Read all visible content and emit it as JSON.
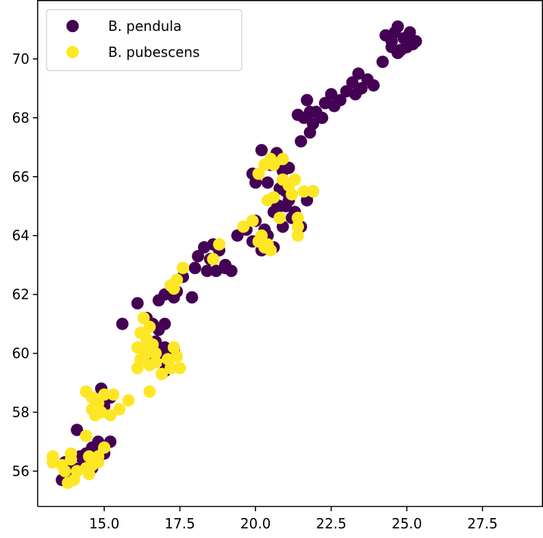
{
  "colors": {
    "pendula": "#440154",
    "pubescens": "#fde725",
    "axis": "#000000"
  },
  "chart_data": {
    "type": "scatter",
    "title": "",
    "xlabel": "",
    "ylabel": "",
    "xlim": [
      12.8,
      29.5
    ],
    "ylim": [
      54.8,
      72.0
    ],
    "xticks": [
      15.0,
      17.5,
      20.0,
      22.5,
      25.0,
      27.5
    ],
    "xtick_labels": [
      "15.0",
      "17.5",
      "20.0",
      "22.5",
      "25.0",
      "27.5"
    ],
    "yticks": [
      56,
      58,
      60,
      62,
      64,
      66,
      68,
      70
    ],
    "ytick_labels": [
      "56",
      "58",
      "60",
      "62",
      "64",
      "66",
      "68",
      "70"
    ],
    "grid": false,
    "legend_position": "top-left",
    "series": [
      {
        "name": "B. pendula",
        "color": "#440154",
        "points": [
          [
            13.6,
            55.7
          ],
          [
            13.8,
            55.9
          ],
          [
            14.0,
            56.1
          ],
          [
            13.7,
            56.3
          ],
          [
            14.2,
            56.5
          ],
          [
            14.3,
            56.2
          ],
          [
            14.1,
            57.4
          ],
          [
            14.4,
            56.6
          ],
          [
            14.6,
            56.8
          ],
          [
            14.8,
            57.0
          ],
          [
            15.2,
            57.0
          ],
          [
            15.0,
            56.6
          ],
          [
            14.6,
            56.1
          ],
          [
            14.9,
            58.8
          ],
          [
            15.2,
            58.5
          ],
          [
            15.0,
            58.2
          ],
          [
            15.6,
            61.0
          ],
          [
            16.1,
            61.7
          ],
          [
            16.4,
            61.2
          ],
          [
            16.6,
            61.0
          ],
          [
            16.8,
            60.8
          ],
          [
            17.0,
            61.0
          ],
          [
            16.7,
            60.4
          ],
          [
            17.0,
            60.2
          ],
          [
            16.8,
            60.0
          ],
          [
            16.6,
            59.8
          ],
          [
            17.1,
            59.6
          ],
          [
            17.3,
            60.1
          ],
          [
            17.0,
            59.4
          ],
          [
            16.8,
            61.8
          ],
          [
            17.0,
            62.0
          ],
          [
            17.2,
            62.3
          ],
          [
            17.4,
            62.1
          ],
          [
            17.6,
            62.6
          ],
          [
            17.9,
            61.9
          ],
          [
            17.3,
            61.9
          ],
          [
            18.1,
            63.3
          ],
          [
            18.3,
            63.6
          ],
          [
            18.5,
            63.2
          ],
          [
            18.0,
            62.9
          ],
          [
            18.4,
            62.8
          ],
          [
            18.8,
            63.5
          ],
          [
            19.0,
            62.9
          ],
          [
            18.7,
            62.8
          ],
          [
            19.2,
            62.8
          ],
          [
            18.6,
            63.7
          ],
          [
            19.0,
            63.0
          ],
          [
            19.4,
            64.0
          ],
          [
            19.7,
            64.2
          ],
          [
            20.0,
            64.5
          ],
          [
            20.2,
            63.7
          ],
          [
            20.4,
            64.0
          ],
          [
            20.2,
            63.5
          ],
          [
            20.6,
            63.6
          ],
          [
            19.9,
            63.8
          ],
          [
            20.3,
            64.2
          ],
          [
            20.6,
            64.8
          ],
          [
            20.9,
            64.3
          ],
          [
            21.1,
            65.2
          ],
          [
            21.3,
            64.8
          ],
          [
            21.5,
            64.3
          ],
          [
            21.0,
            65.5
          ],
          [
            21.7,
            65.2
          ],
          [
            21.9,
            65.5
          ],
          [
            20.8,
            65.0
          ],
          [
            21.2,
            64.6
          ],
          [
            19.9,
            66.1
          ],
          [
            20.2,
            66.9
          ],
          [
            20.5,
            66.4
          ],
          [
            20.7,
            66.8
          ],
          [
            20.9,
            66.2
          ],
          [
            20.4,
            65.8
          ],
          [
            20.8,
            65.6
          ],
          [
            21.1,
            66.3
          ],
          [
            20.6,
            65.2
          ],
          [
            21.0,
            65.0
          ],
          [
            20.0,
            65.8
          ],
          [
            21.5,
            67.2
          ],
          [
            21.6,
            68.0
          ],
          [
            21.8,
            68.2
          ],
          [
            21.9,
            67.8
          ],
          [
            21.7,
            68.6
          ],
          [
            22.0,
            68.2
          ],
          [
            22.2,
            68.0
          ],
          [
            21.4,
            68.1
          ],
          [
            21.8,
            67.5
          ],
          [
            22.3,
            68.5
          ],
          [
            22.5,
            68.8
          ],
          [
            22.8,
            68.6
          ],
          [
            23.0,
            68.9
          ],
          [
            23.2,
            69.2
          ],
          [
            23.4,
            69.5
          ],
          [
            23.5,
            69.0
          ],
          [
            23.7,
            69.3
          ],
          [
            23.9,
            69.1
          ],
          [
            22.6,
            68.4
          ],
          [
            23.3,
            68.8
          ],
          [
            24.2,
            69.9
          ],
          [
            24.3,
            70.8
          ],
          [
            24.5,
            70.6
          ],
          [
            24.6,
            70.9
          ],
          [
            24.7,
            71.1
          ],
          [
            24.8,
            70.3
          ],
          [
            24.9,
            70.7
          ],
          [
            25.0,
            70.4
          ],
          [
            25.1,
            70.9
          ],
          [
            25.2,
            70.5
          ],
          [
            25.3,
            70.6
          ],
          [
            24.7,
            70.2
          ],
          [
            24.5,
            70.4
          ]
        ]
      },
      {
        "name": "B. pubescens",
        "color": "#fde725",
        "points": [
          [
            13.3,
            56.5
          ],
          [
            13.3,
            56.3
          ],
          [
            13.6,
            56.2
          ],
          [
            13.8,
            55.6
          ],
          [
            13.9,
            56.4
          ],
          [
            14.0,
            55.7
          ],
          [
            14.1,
            56.0
          ],
          [
            13.9,
            56.6
          ],
          [
            14.4,
            56.1
          ],
          [
            14.6,
            56.2
          ],
          [
            14.5,
            56.5
          ],
          [
            14.8,
            56.5
          ],
          [
            15.0,
            56.8
          ],
          [
            14.8,
            56.3
          ],
          [
            14.4,
            57.2
          ],
          [
            14.5,
            55.9
          ],
          [
            13.7,
            56.0
          ],
          [
            14.4,
            58.7
          ],
          [
            14.6,
            58.5
          ],
          [
            14.8,
            58.3
          ],
          [
            14.9,
            58.0
          ],
          [
            15.0,
            58.6
          ],
          [
            15.3,
            58.6
          ],
          [
            14.6,
            58.1
          ],
          [
            15.2,
            57.9
          ],
          [
            15.5,
            58.1
          ],
          [
            15.8,
            58.4
          ],
          [
            14.7,
            57.9
          ],
          [
            16.1,
            59.5
          ],
          [
            16.2,
            59.8
          ],
          [
            16.3,
            60.2
          ],
          [
            16.4,
            60.5
          ],
          [
            16.5,
            60.9
          ],
          [
            16.3,
            61.2
          ],
          [
            16.5,
            59.6
          ],
          [
            16.7,
            59.7
          ],
          [
            16.9,
            59.3
          ],
          [
            17.2,
            59.5
          ],
          [
            17.4,
            59.9
          ],
          [
            17.5,
            59.5
          ],
          [
            16.4,
            60.0
          ],
          [
            16.6,
            60.3
          ],
          [
            17.1,
            59.8
          ],
          [
            17.3,
            60.2
          ],
          [
            16.5,
            58.7
          ],
          [
            16.2,
            60.7
          ],
          [
            16.7,
            60.0
          ],
          [
            16.1,
            60.2
          ],
          [
            17.2,
            62.3
          ],
          [
            17.4,
            62.5
          ],
          [
            17.6,
            62.9
          ],
          [
            17.3,
            62.2
          ],
          [
            18.6,
            63.2
          ],
          [
            18.8,
            63.7
          ],
          [
            19.6,
            64.3
          ],
          [
            19.9,
            64.5
          ],
          [
            20.2,
            64.0
          ],
          [
            20.4,
            63.7
          ],
          [
            20.5,
            63.5
          ],
          [
            20.1,
            63.8
          ],
          [
            20.3,
            63.6
          ],
          [
            20.1,
            66.1
          ],
          [
            20.3,
            66.4
          ],
          [
            20.5,
            66.6
          ],
          [
            20.4,
            65.2
          ],
          [
            20.6,
            65.3
          ],
          [
            20.9,
            65.9
          ],
          [
            21.1,
            65.7
          ],
          [
            21.3,
            65.9
          ],
          [
            21.6,
            65.5
          ],
          [
            21.9,
            65.5
          ],
          [
            21.4,
            64.6
          ],
          [
            21.4,
            64.3
          ],
          [
            21.4,
            64.0
          ],
          [
            20.8,
            64.6
          ],
          [
            20.9,
            66.6
          ],
          [
            21.2,
            65.4
          ],
          [
            20.6,
            66.4
          ]
        ]
      }
    ]
  }
}
